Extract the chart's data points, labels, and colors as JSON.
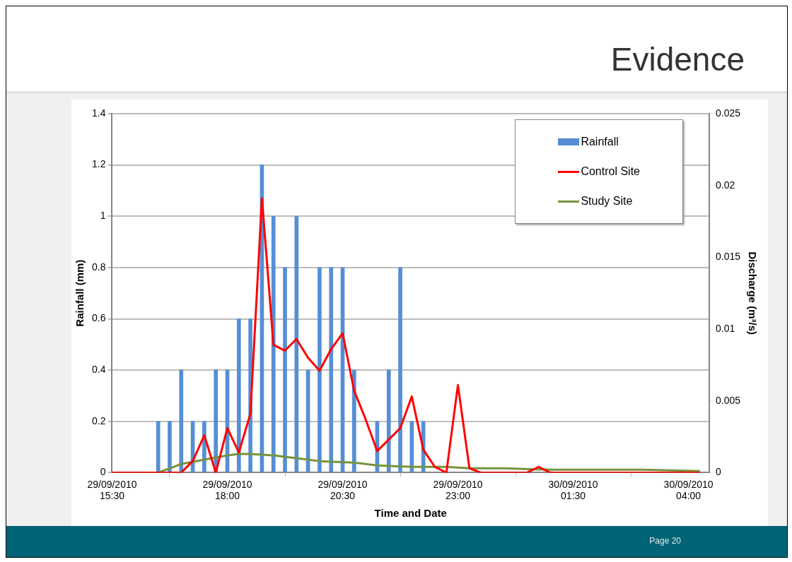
{
  "chart_data": {
    "type": "bar",
    "title": "Evidence",
    "xlabel": "Time and Date",
    "ylabel": "Rainfall (mm)",
    "y2label": "Discharge (m³/s)",
    "annotations": [
      "Page 20"
    ],
    "series": [
      {
        "name": "Rainfall",
        "color": "#558ed5",
        "x": [
          "2010-09-29T16:30",
          "2010-09-29T16:45",
          "2010-09-29T17:00",
          "2010-09-29T17:15",
          "2010-09-29T17:30",
          "2010-09-29T17:45",
          "2010-09-29T18:00",
          "2010-09-29T18:15",
          "2010-09-29T18:30",
          "2010-09-29T18:45",
          "2010-09-29T19:00",
          "2010-09-29T19:15",
          "2010-09-29T19:30",
          "2010-09-29T19:45",
          "2010-09-29T20:00",
          "2010-09-29T20:15",
          "2010-09-29T20:30",
          "2010-09-29T20:45",
          "2010-09-29T21:00",
          "2010-09-29T21:15",
          "2010-09-29T21:30",
          "2010-09-29T21:45",
          "2010-09-29T22:00",
          "2010-09-29T22:15"
        ],
        "values": [
          0.2,
          0.2,
          0.4,
          0.2,
          0.2,
          0.4,
          0.4,
          0.6,
          0.6,
          1.2,
          1.0,
          0.8,
          1.0,
          0.4,
          0.8,
          0.8,
          0.8,
          0.4,
          0,
          0.2,
          0.4,
          0.8,
          0.2,
          0.2
        ]
      },
      {
        "name": "Control Site",
        "type": "line",
        "axis": "y2",
        "color": "#ff0000",
        "x": [
          "2010-09-29T15:30",
          "2010-09-29T17:00",
          "2010-09-29T17:15",
          "2010-09-29T17:30",
          "2010-09-29T17:45",
          "2010-09-29T18:00",
          "2010-09-29T18:15",
          "2010-09-29T18:30",
          "2010-09-29T18:45",
          "2010-09-29T19:00",
          "2010-09-29T19:15",
          "2010-09-29T19:30",
          "2010-09-29T19:45",
          "2010-09-29T20:00",
          "2010-09-29T20:15",
          "2010-09-29T20:30",
          "2010-09-29T20:45",
          "2010-09-29T21:00",
          "2010-09-29T21:15",
          "2010-09-29T21:30",
          "2010-09-29T21:45",
          "2010-09-29T22:00",
          "2010-09-29T22:15",
          "2010-09-29T22:30",
          "2010-09-29T22:45",
          "2010-09-29T23:00",
          "2010-09-29T23:15",
          "2010-09-29T23:30",
          "2010-09-30T00:30",
          "2010-09-30T00:45",
          "2010-09-30T01:00",
          "2010-09-30T04:15"
        ],
        "values": [
          0,
          0,
          0.0008,
          0.0026,
          0,
          0.0031,
          0.0014,
          0.0041,
          0.0191,
          0.0089,
          0.0085,
          0.0093,
          0.008,
          0.0071,
          0.0086,
          0.0097,
          0.0057,
          0.0037,
          0.0015,
          0.0023,
          0.0031,
          0.0053,
          0.0016,
          0.0004,
          0,
          0.0061,
          0.0003,
          0,
          0,
          0.0004,
          0,
          0
        ]
      },
      {
        "name": "Study Site",
        "type": "line",
        "axis": "y2",
        "color": "#77933c",
        "x": [
          "2010-09-29T15:30",
          "2010-09-29T16:30",
          "2010-09-29T16:45",
          "2010-09-29T17:00",
          "2010-09-29T17:30",
          "2010-09-29T18:00",
          "2010-09-29T18:15",
          "2010-09-29T18:30",
          "2010-09-29T19:00",
          "2010-09-29T19:30",
          "2010-09-29T20:00",
          "2010-09-29T20:45",
          "2010-09-29T21:15",
          "2010-09-29T22:00",
          "2010-09-29T22:45",
          "2010-09-29T23:15",
          "2010-09-30T00:00",
          "2010-09-30T01:00",
          "2010-09-30T02:00",
          "2010-09-30T03:00",
          "2010-09-30T04:15"
        ],
        "values": [
          0,
          0,
          0.0003,
          0.0006,
          0.0009,
          0.0012,
          0.0013,
          0.0013,
          0.0012,
          0.001,
          0.0008,
          0.0007,
          0.0005,
          0.0004,
          0.0004,
          0.0003,
          0.0003,
          0.0002,
          0.0002,
          0.0002,
          0.0001
        ]
      }
    ],
    "xlim": [
      "2010-09-29T15:30",
      "2010-09-30T04:27"
    ],
    "xticks": [
      {
        "value": "2010-09-29T15:30",
        "label": "29/09/2010 15:30"
      },
      {
        "value": "2010-09-29T18:00",
        "label": "29/09/2010 18:00"
      },
      {
        "value": "2010-09-29T20:30",
        "label": "29/09/2010 20:30"
      },
      {
        "value": "2010-09-29T23:00",
        "label": "29/09/2010 23:00"
      },
      {
        "value": "2010-09-30T01:30",
        "label": "30/09/2010 01:30"
      },
      {
        "value": "2010-09-30T04:00",
        "label": "30/09/2010 04:00"
      }
    ],
    "ylim": [
      0,
      1.4
    ],
    "yticks": [
      0,
      0.2,
      0.4,
      0.6,
      0.8,
      1,
      1.2,
      1.4
    ],
    "y2lim": [
      0,
      0.025
    ],
    "y2ticks": [
      0,
      0.005,
      0.01,
      0.015,
      0.02,
      0.025
    ],
    "grid": "y",
    "legend": "top right",
    "marker": "none",
    "line_style": "solid"
  }
}
